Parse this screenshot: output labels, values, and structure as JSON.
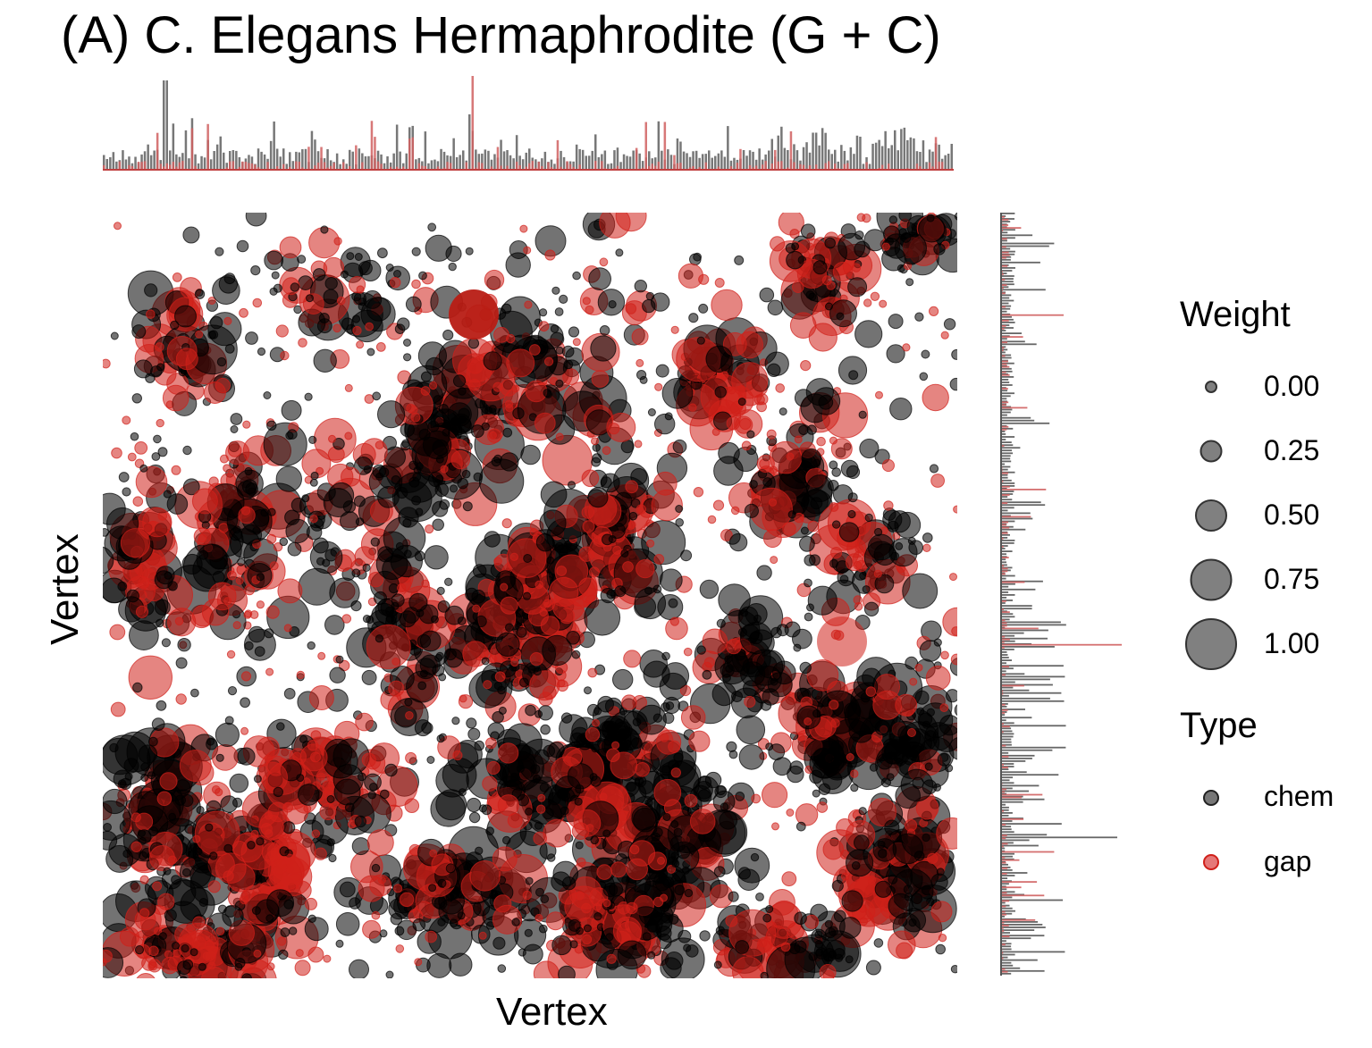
{
  "chart_data": {
    "type": "scatter",
    "title": "(A) C. Elegans Hermaphrodite (G + C)",
    "xlabel": "Vertex",
    "ylabel": "Vertex",
    "grid": false,
    "legend_placement": "right",
    "marginal_histograms": [
      "top",
      "right"
    ],
    "series": [
      {
        "name": "chem",
        "color": "#000000"
      },
      {
        "name": "gap",
        "color": "#d0201a"
      }
    ],
    "legend": {
      "weight": {
        "title": "Weight",
        "entries": [
          "0.00",
          "0.25",
          "0.50",
          "0.75",
          "1.00"
        ],
        "values": [
          0.0,
          0.25,
          0.5,
          0.75,
          1.0
        ]
      },
      "type": {
        "title": "Type",
        "entries": [
          "chem",
          "gap"
        ]
      }
    }
  }
}
